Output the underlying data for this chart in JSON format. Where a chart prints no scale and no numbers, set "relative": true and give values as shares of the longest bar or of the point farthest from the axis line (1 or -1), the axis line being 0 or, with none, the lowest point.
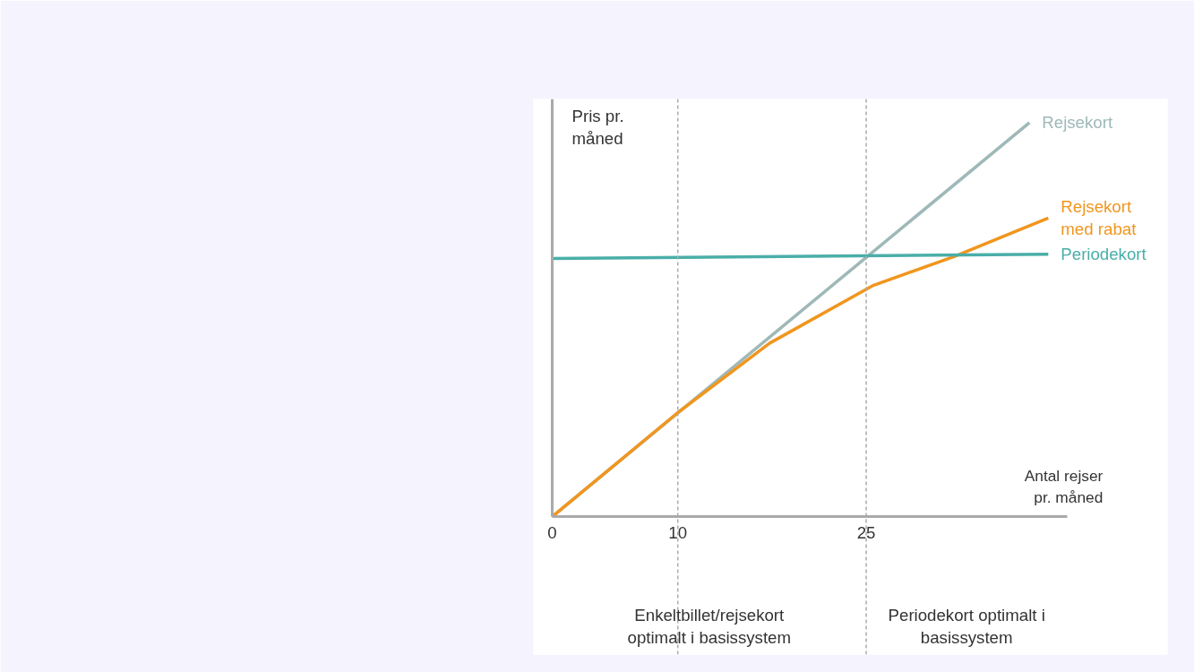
{
  "chart_data": {
    "type": "line",
    "relative": true,
    "xlabel": "Antal rejser pr. måned",
    "ylabel": "Pris pr. måned",
    "x": [
      0,
      10,
      17.3,
      25.5,
      32,
      39.5
    ],
    "xlim": [
      0,
      41
    ],
    "xticks": [
      0,
      10,
      25
    ],
    "grid": false,
    "legend": false,
    "marker": "none",
    "line_style": "solid",
    "series": [
      {
        "name": "Rejsekort",
        "color": "#9fb8b8",
        "x": [
          0,
          38
        ],
        "values": [
          0,
          1
        ]
      },
      {
        "name": "Rejsekort med rabat",
        "color": "#f0961e",
        "values": [
          0,
          0.264,
          0.44,
          0.586,
          0.66,
          0.758
        ]
      },
      {
        "name": "Periodekort",
        "color": "#4aaea8",
        "x": [
          0,
          39.5
        ],
        "values": [
          0.655,
          0.666
        ]
      }
    ],
    "ref_lines": [
      {
        "axis": "x",
        "value": 10,
        "color": "#aaaaaa",
        "line_style": "dashed"
      },
      {
        "axis": "x",
        "value": 25,
        "color": "#aaaaaa",
        "line_style": "dashed"
      }
    ],
    "annotations": [
      "Enkeltbillet/rejsekort optimalt i basissystem",
      "Periodekort optimalt i basissystem"
    ]
  }
}
